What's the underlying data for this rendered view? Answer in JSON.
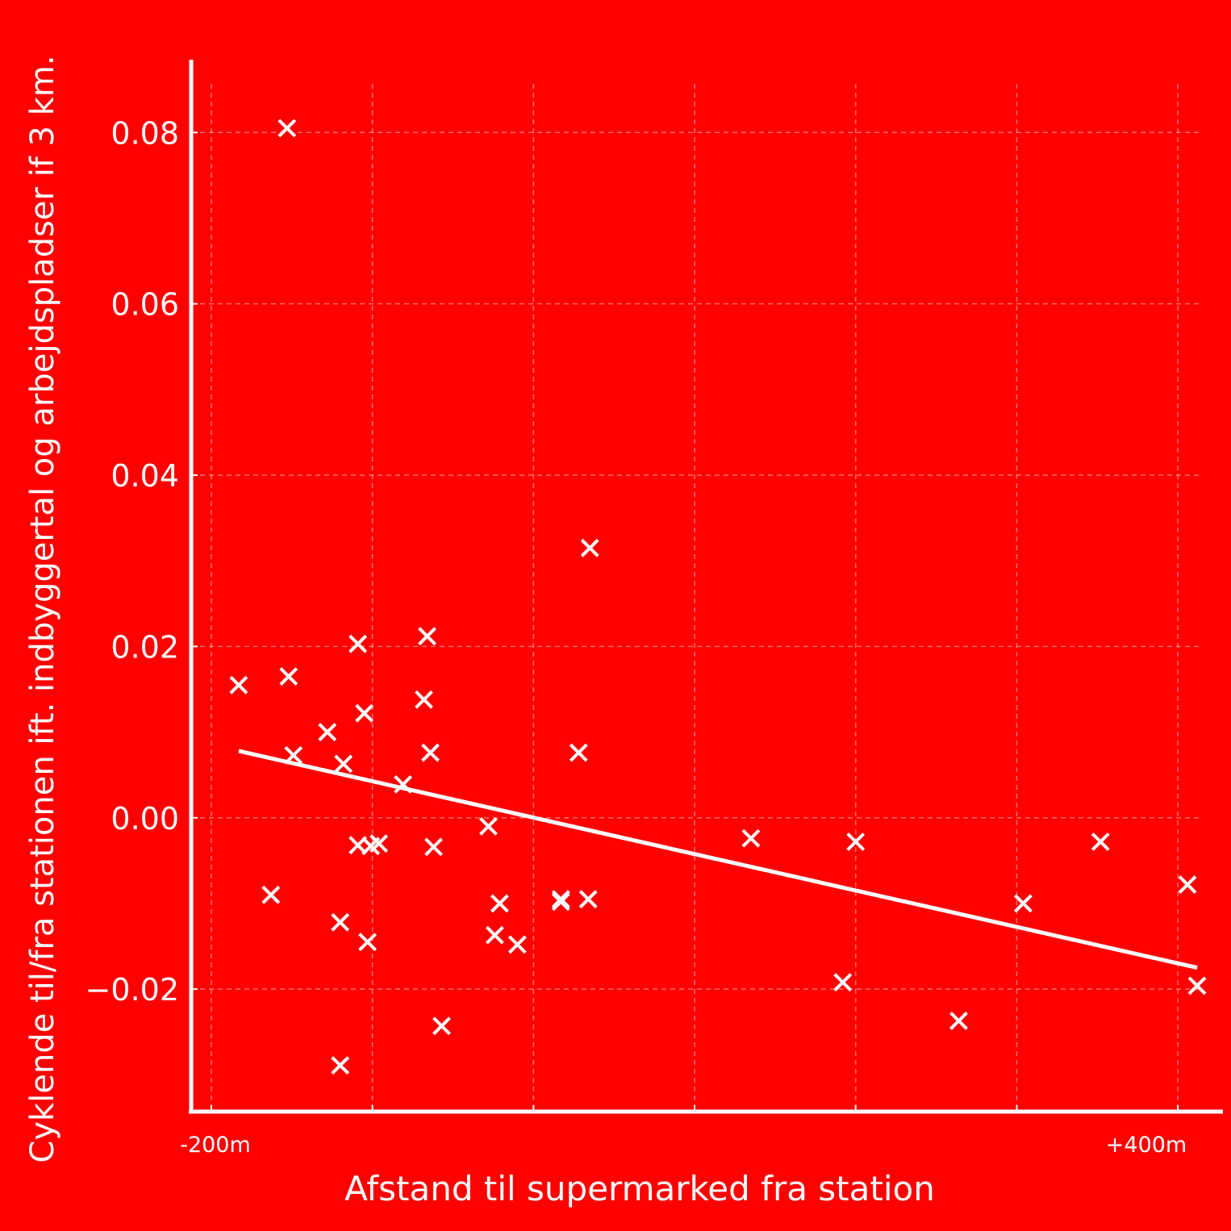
{
  "chart_data": {
    "type": "scatter",
    "xlabel": "Afstand til supermarked fra station",
    "ylabel": "Cyklende til/fra stationen ift. indbyggertal og arbejdspladser if 3 km.",
    "x_tick_labels": [
      "-200m",
      "+400m"
    ],
    "y_ticks": [
      0.08,
      0.06,
      0.04,
      0.02,
      0.0,
      -0.02
    ],
    "y_tick_labels": [
      "0.08",
      "0.06",
      "0.04",
      "0.02",
      "0.00",
      "−0.02"
    ],
    "xlim": [
      -212.5,
      428.0
    ],
    "ylim": [
      -0.0343,
      0.0885
    ],
    "x_grid": [
      -200,
      -100,
      0,
      100,
      200,
      300,
      400
    ],
    "grid": true,
    "colors": {
      "background": "#ff0000",
      "foreground": "#ffffff"
    },
    "marker": "x",
    "points": [
      {
        "x": -183,
        "y": 0.0155
      },
      {
        "x": -163,
        "y": -0.009
      },
      {
        "x": -153,
        "y": 0.0805
      },
      {
        "x": -152,
        "y": 0.0165
      },
      {
        "x": -149,
        "y": 0.0073
      },
      {
        "x": -128,
        "y": 0.01
      },
      {
        "x": -120,
        "y": -0.0122
      },
      {
        "x": -120,
        "y": -0.0289
      },
      {
        "x": -118,
        "y": 0.0063
      },
      {
        "x": -109,
        "y": 0.0203
      },
      {
        "x": -109,
        "y": -0.0032
      },
      {
        "x": -105,
        "y": 0.0122
      },
      {
        "x": -103,
        "y": -0.0145
      },
      {
        "x": -101,
        "y": -0.0033
      },
      {
        "x": -96,
        "y": -0.003
      },
      {
        "x": -81,
        "y": 0.0039
      },
      {
        "x": -68,
        "y": 0.0138
      },
      {
        "x": -66,
        "y": 0.0212
      },
      {
        "x": -64,
        "y": 0.0076
      },
      {
        "x": -62,
        "y": -0.0034
      },
      {
        "x": -57,
        "y": -0.0243
      },
      {
        "x": -28,
        "y": -0.001
      },
      {
        "x": -24,
        "y": -0.0137
      },
      {
        "x": -21,
        "y": -0.01
      },
      {
        "x": -10,
        "y": -0.0148
      },
      {
        "x": 17,
        "y": -0.0095
      },
      {
        "x": 17,
        "y": -0.0098
      },
      {
        "x": 28,
        "y": 0.0076
      },
      {
        "x": 34,
        "y": -0.0095
      },
      {
        "x": 35,
        "y": 0.0315
      },
      {
        "x": 135,
        "y": -0.0024
      },
      {
        "x": 192,
        "y": -0.0192
      },
      {
        "x": 200,
        "y": -0.0028
      },
      {
        "x": 264,
        "y": -0.0237
      },
      {
        "x": 304,
        "y": -0.01
      },
      {
        "x": 352,
        "y": -0.0028
      },
      {
        "x": 406,
        "y": -0.0078
      },
      {
        "x": 412,
        "y": -0.0196
      }
    ],
    "trendline": {
      "x": [
        -183,
        412
      ],
      "y": [
        0.0078,
        -0.0175
      ]
    }
  }
}
